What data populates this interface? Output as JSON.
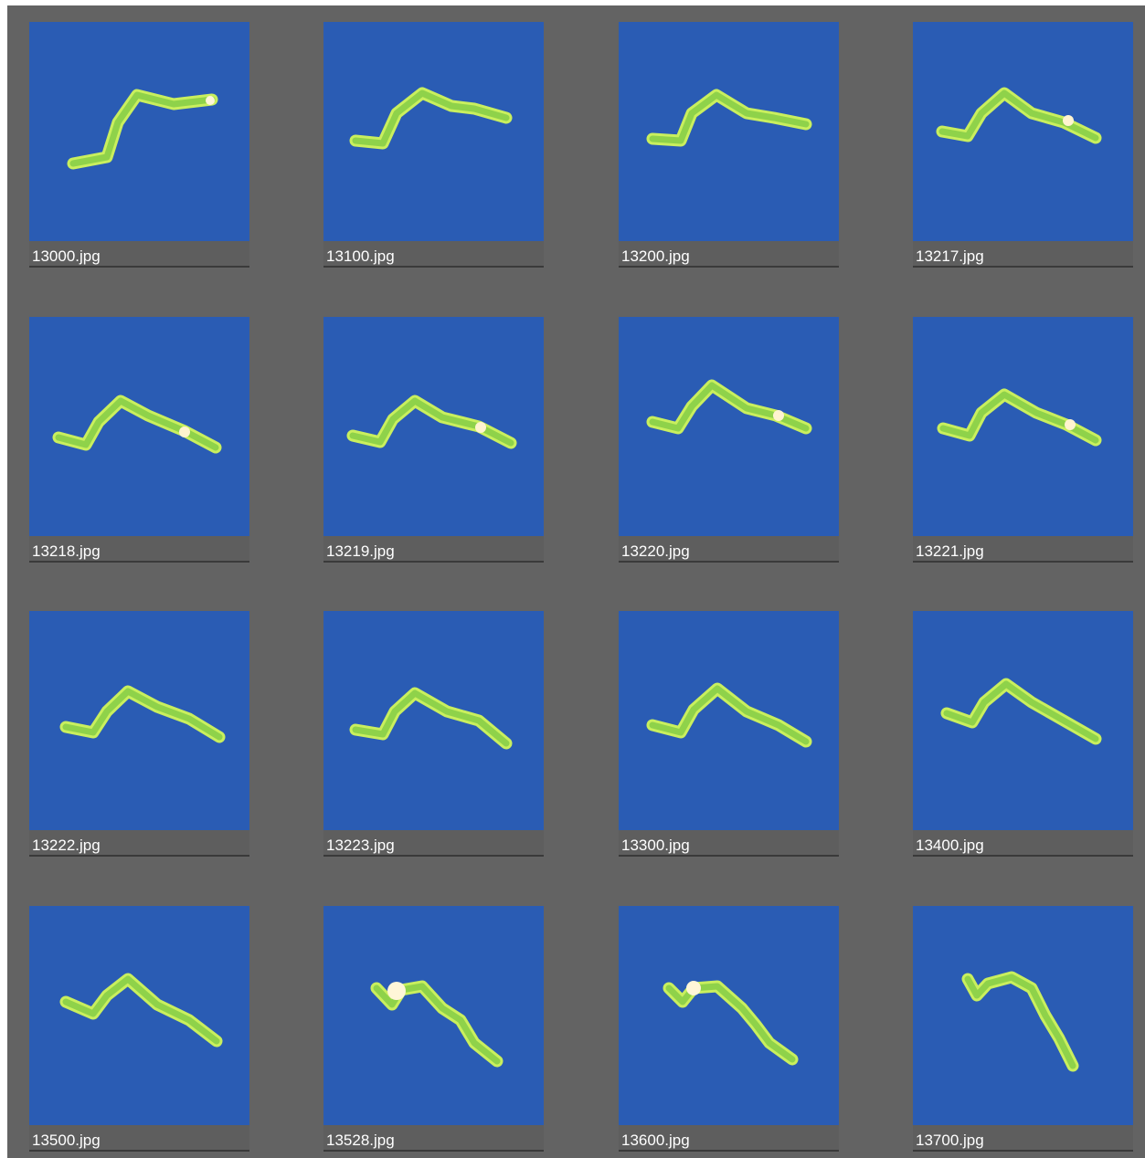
{
  "thumbnail_background": "#2a5cb4",
  "worm_color": "#9fe04f",
  "files": [
    {
      "name": "13000.jpg"
    },
    {
      "name": "13100.jpg"
    },
    {
      "name": "13200.jpg"
    },
    {
      "name": "13217.jpg"
    },
    {
      "name": "13218.jpg"
    },
    {
      "name": "13219.jpg"
    },
    {
      "name": "13220.jpg"
    },
    {
      "name": "13221.jpg"
    },
    {
      "name": "13222.jpg"
    },
    {
      "name": "13223.jpg"
    },
    {
      "name": "13300.jpg"
    },
    {
      "name": "13400.jpg"
    },
    {
      "name": "13500.jpg"
    },
    {
      "name": "13528.jpg"
    },
    {
      "name": "13600.jpg"
    },
    {
      "name": "13700.jpg"
    }
  ]
}
